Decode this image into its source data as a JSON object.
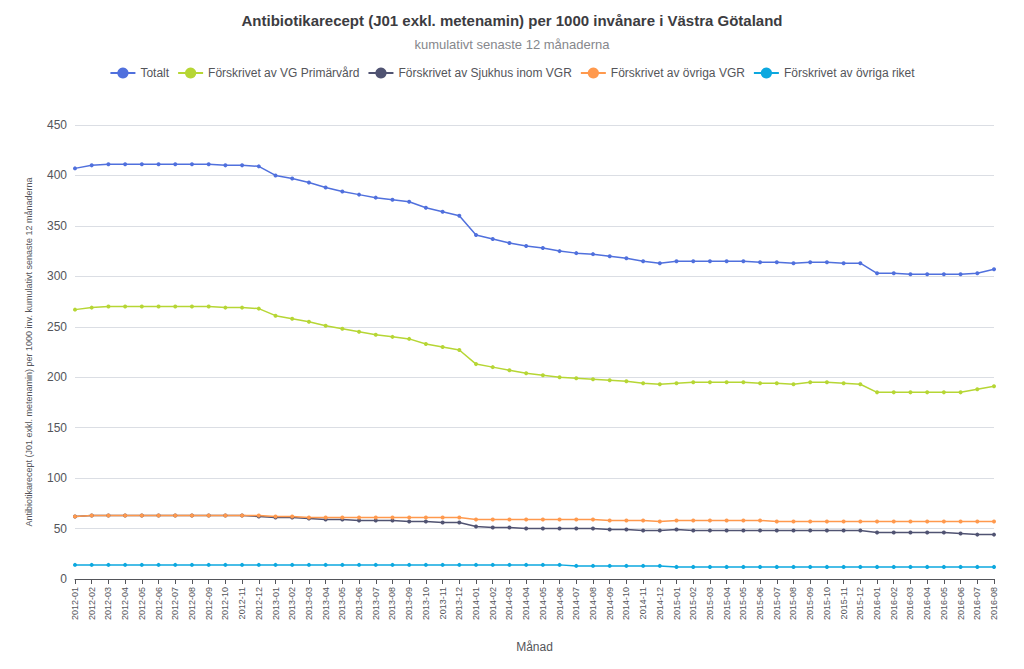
{
  "chart_data": {
    "type": "line",
    "title": "Antibiotikarecept (J01 exkl. metenamin) per 1000 invånare i Västra Götaland",
    "subtitle": "kumulativt senaste 12 månaderna",
    "xlabel": "Månad",
    "ylabel": "Antibiotikarecept (J01 exkl. metenamin) per 1000 inv. kumulativt senaste 12 månaderna",
    "categories": [
      "2012-01",
      "2012-02",
      "2012-03",
      "2012-04",
      "2012-05",
      "2012-06",
      "2012-07",
      "2012-08",
      "2012-09",
      "2012-10",
      "2012-11",
      "2012-12",
      "2013-01",
      "2013-02",
      "2013-03",
      "2013-04",
      "2013-05",
      "2013-06",
      "2013-07",
      "2013-08",
      "2013-09",
      "2013-10",
      "2013-11",
      "2013-12",
      "2014-01",
      "2014-02",
      "2014-03",
      "2014-04",
      "2014-05",
      "2014-06",
      "2014-07",
      "2014-08",
      "2014-09",
      "2014-10",
      "2014-11",
      "2014-12",
      "2015-01",
      "2015-02",
      "2015-03",
      "2015-04",
      "2015-05",
      "2015-06",
      "2015-07",
      "2015-08",
      "2015-09",
      "2015-10",
      "2015-11",
      "2015-12",
      "2016-01",
      "2016-02",
      "2016-03",
      "2016-04",
      "2016-05",
      "2016-06",
      "2016-07",
      "2016-08"
    ],
    "series": [
      {
        "name": "Totalt",
        "values": [
          407,
          410,
          411,
          411,
          411,
          411,
          411,
          411,
          411,
          410,
          410,
          409,
          400,
          397,
          393,
          388,
          384,
          381,
          378,
          376,
          374,
          368,
          364,
          360,
          341,
          337,
          333,
          330,
          328,
          325,
          323,
          322,
          320,
          318,
          315,
          313,
          315,
          315,
          315,
          315,
          315,
          314,
          314,
          313,
          314,
          314,
          313,
          313,
          303,
          303,
          302,
          302,
          302,
          302,
          303,
          307
        ]
      },
      {
        "name": "Förskrivet av VG Primärvård",
        "values": [
          267,
          269,
          270,
          270,
          270,
          270,
          270,
          270,
          270,
          269,
          269,
          268,
          261,
          258,
          255,
          251,
          248,
          245,
          242,
          240,
          238,
          233,
          230,
          227,
          213,
          210,
          207,
          204,
          202,
          200,
          199,
          198,
          197,
          196,
          194,
          193,
          194,
          195,
          195,
          195,
          195,
          194,
          194,
          193,
          195,
          195,
          194,
          193,
          185,
          185,
          185,
          185,
          185,
          185,
          188,
          191
        ]
      },
      {
        "name": "Förskrivet av Sjukhus inom VGR",
        "values": [
          62,
          63,
          63,
          63,
          63,
          63,
          63,
          63,
          63,
          63,
          63,
          62,
          61,
          61,
          60,
          59,
          59,
          58,
          58,
          58,
          57,
          57,
          56,
          56,
          52,
          51,
          51,
          50,
          50,
          50,
          50,
          50,
          49,
          49,
          48,
          48,
          49,
          48,
          48,
          48,
          48,
          48,
          48,
          48,
          48,
          48,
          48,
          48,
          46,
          46,
          46,
          46,
          46,
          45,
          44,
          44
        ]
      },
      {
        "name": "Förskrivet av övriga VGR",
        "values": [
          62,
          63,
          63,
          63,
          63,
          63,
          63,
          63,
          63,
          63,
          63,
          63,
          62,
          62,
          61,
          61,
          61,
          61,
          61,
          61,
          61,
          61,
          61,
          61,
          59,
          59,
          59,
          59,
          59,
          59,
          59,
          59,
          58,
          58,
          58,
          57,
          58,
          58,
          58,
          58,
          58,
          58,
          57,
          57,
          57,
          57,
          57,
          57,
          57,
          57,
          57,
          57,
          57,
          57,
          57,
          57
        ]
      },
      {
        "name": "Förskrivet av övriga riket",
        "values": [
          14,
          14,
          14,
          14,
          14,
          14,
          14,
          14,
          14,
          14,
          14,
          14,
          14,
          14,
          14,
          14,
          14,
          14,
          14,
          14,
          14,
          14,
          14,
          14,
          14,
          14,
          14,
          14,
          14,
          14,
          13,
          13,
          13,
          13,
          13,
          13,
          12,
          12,
          12,
          12,
          12,
          12,
          12,
          12,
          12,
          12,
          12,
          12,
          12,
          12,
          12,
          12,
          12,
          12,
          12,
          12
        ]
      }
    ],
    "ylim": [
      0,
      450
    ],
    "yticks": [
      0,
      50,
      100,
      150,
      200,
      250,
      300,
      350,
      400,
      450
    ],
    "grid": true,
    "legend": "top",
    "marker": "circle"
  }
}
